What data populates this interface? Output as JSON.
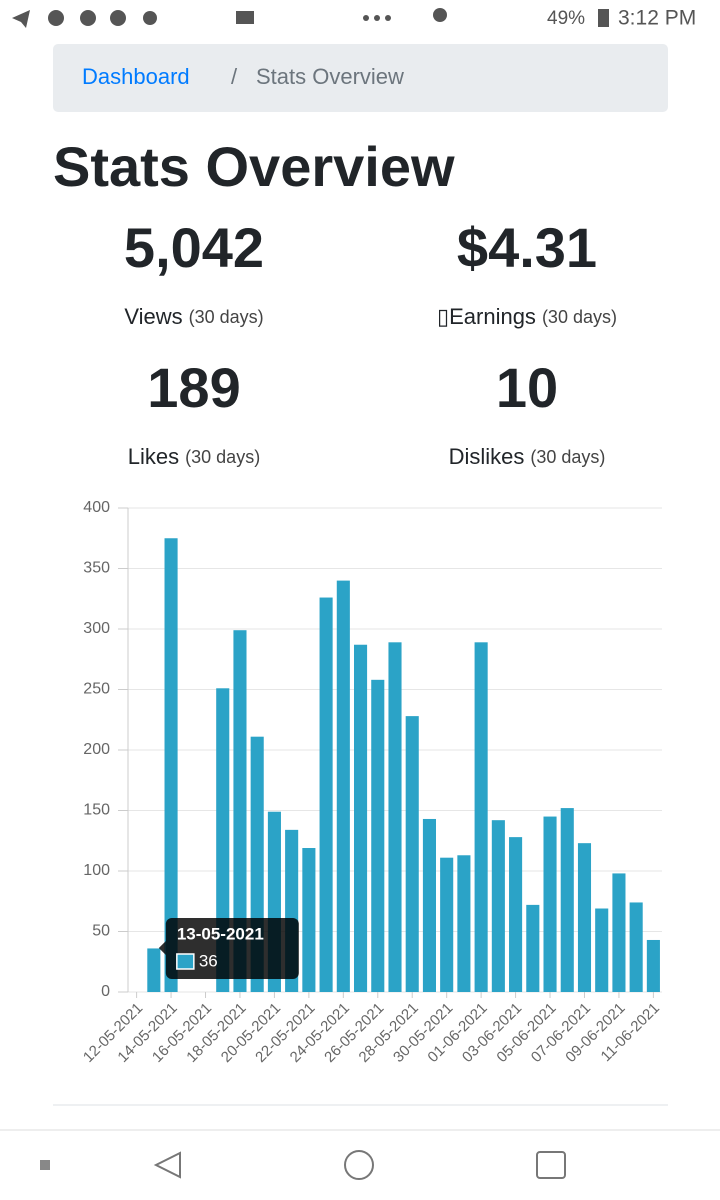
{
  "status_bar": {
    "battery": "49%",
    "time": "3:12 PM"
  },
  "breadcrumb": {
    "items": [
      "Dashboard",
      "Stats Overview"
    ],
    "separator": "/"
  },
  "title": "Stats Overview",
  "stats": [
    {
      "value": "5,042",
      "label": "Views",
      "period": "(30 days)"
    },
    {
      "value": "$4.31",
      "label": "▯Earnings",
      "period": "(30 days)"
    },
    {
      "value": "189",
      "label": "Likes",
      "period": "(30 days)"
    },
    {
      "value": "10",
      "label": "Dislikes",
      "period": "(30 days)"
    }
  ],
  "chart_data": {
    "type": "bar",
    "categories": [
      "12-05-2021",
      null,
      "14-05-2021",
      null,
      "16-05-2021",
      null,
      "18-05-2021",
      null,
      "20-05-2021",
      null,
      "22-05-2021",
      null,
      "24-05-2021",
      null,
      "26-05-2021",
      null,
      "28-05-2021",
      null,
      "30-05-2021",
      null,
      "01-06-2021",
      null,
      "03-06-2021",
      null,
      "05-06-2021",
      null,
      "07-06-2021",
      null,
      "09-06-2021",
      null,
      "11-06-2021"
    ],
    "values": [
      null,
      36,
      375,
      null,
      null,
      251,
      299,
      211,
      149,
      134,
      119,
      326,
      340,
      287,
      258,
      289,
      228,
      143,
      111,
      113,
      289,
      142,
      128,
      72,
      145,
      152,
      123,
      69,
      98,
      74,
      43
    ],
    "color": "#2ba3c7",
    "ylim": [
      0,
      400
    ],
    "yticks": [
      0,
      50,
      100,
      150,
      200,
      250,
      300,
      350,
      400
    ],
    "grid": true,
    "tooltip": {
      "title": "13-05-2021"
    }
  }
}
